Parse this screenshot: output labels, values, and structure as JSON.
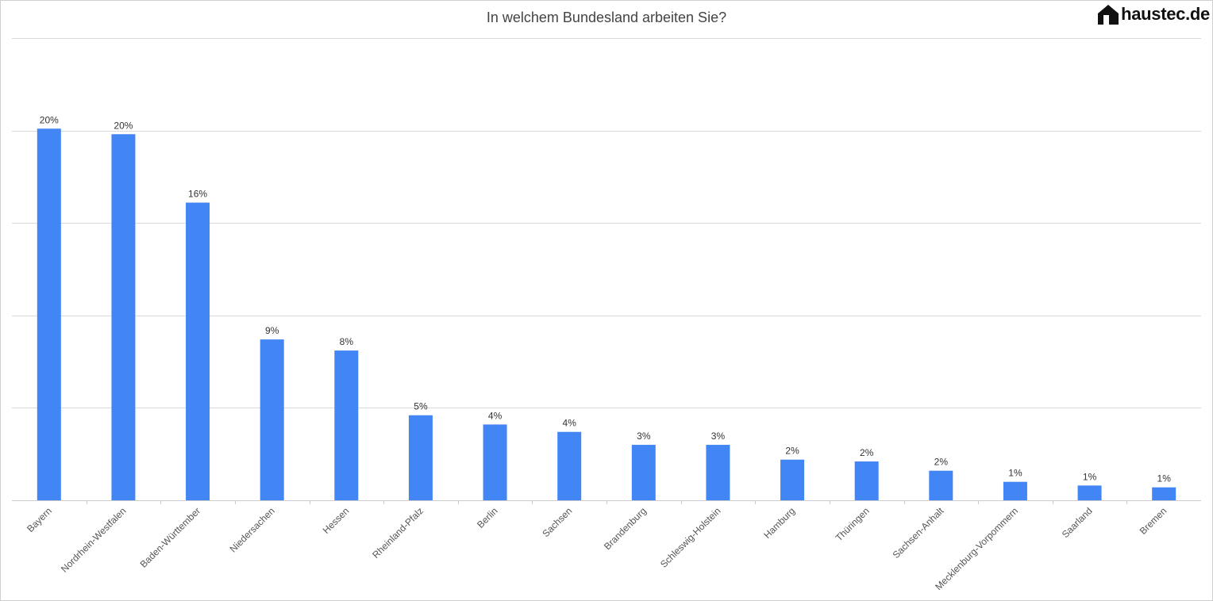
{
  "brand": {
    "name": "haustec.de",
    "icon": "house-icon"
  },
  "chart_data": {
    "type": "bar",
    "title": "In welchem Bundesland arbeiten Sie?",
    "xlabel": "",
    "ylabel": "",
    "unit": "%",
    "categories": [
      "Bayern",
      "Nordrhein-Westfalen",
      "Baden-Württember",
      "Niedersachen",
      "Hessen",
      "Rheinland-Pfalz",
      "Berlin",
      "Sachsen",
      "Brandenburg",
      "Schleswig-Holstein",
      "Hamburg",
      "Thüringen",
      "Sachsen-Anhalt",
      "Mecklenburg-Vorpommern",
      "Saarland",
      "Bremen"
    ],
    "values": [
      20.1,
      19.8,
      16.1,
      8.7,
      8.1,
      4.6,
      4.1,
      3.7,
      3.0,
      3.0,
      2.2,
      2.1,
      1.6,
      1.0,
      0.8,
      0.7
    ],
    "value_labels": [
      "20%",
      "20%",
      "16%",
      "9%",
      "8%",
      "5%",
      "4%",
      "4%",
      "3%",
      "3%",
      "2%",
      "2%",
      "2%",
      "1%",
      "1%",
      "1%"
    ],
    "ylim": [
      0,
      25
    ],
    "grid": true,
    "gridline_count": 5,
    "legend": "none",
    "bar_color": "#4285f4",
    "grid_color": "#d9d9d9"
  }
}
